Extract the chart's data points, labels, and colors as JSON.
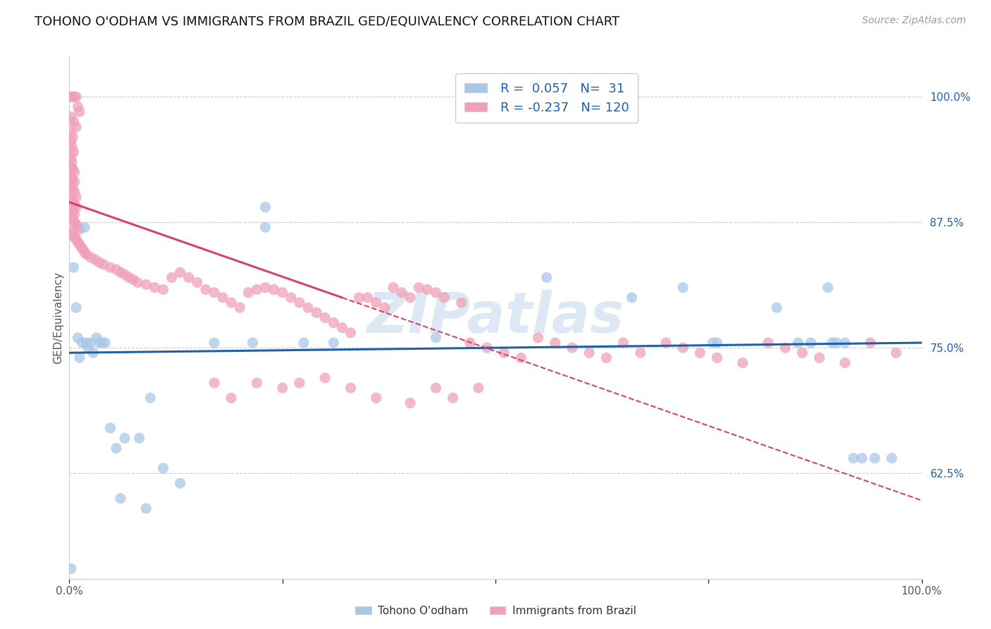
{
  "title": "TOHONO O'ODHAM VS IMMIGRANTS FROM BRAZIL GED/EQUIVALENCY CORRELATION CHART",
  "source": "Source: ZipAtlas.com",
  "ylabel": "GED/Equivalency",
  "legend_blue_r": "0.057",
  "legend_blue_n": "31",
  "legend_pink_r": "-0.237",
  "legend_pink_n": "120",
  "legend_label_blue": "Tohono O'odham",
  "legend_label_pink": "Immigrants from Brazil",
  "watermark": "ZIPatlas",
  "blue_scatter": [
    [
      0.005,
      0.83
    ],
    [
      0.008,
      0.79
    ],
    [
      0.01,
      0.76
    ],
    [
      0.012,
      0.74
    ],
    [
      0.015,
      0.755
    ],
    [
      0.018,
      0.87
    ],
    [
      0.02,
      0.755
    ],
    [
      0.022,
      0.75
    ],
    [
      0.025,
      0.755
    ],
    [
      0.028,
      0.745
    ],
    [
      0.032,
      0.76
    ],
    [
      0.035,
      0.755
    ],
    [
      0.038,
      0.755
    ],
    [
      0.042,
      0.755
    ],
    [
      0.048,
      0.67
    ],
    [
      0.055,
      0.65
    ],
    [
      0.065,
      0.66
    ],
    [
      0.082,
      0.66
    ],
    [
      0.095,
      0.7
    ],
    [
      0.11,
      0.63
    ],
    [
      0.13,
      0.615
    ],
    [
      0.17,
      0.755
    ],
    [
      0.215,
      0.755
    ],
    [
      0.23,
      0.89
    ],
    [
      0.23,
      0.87
    ],
    [
      0.275,
      0.755
    ],
    [
      0.31,
      0.755
    ],
    [
      0.43,
      0.76
    ],
    [
      0.56,
      0.82
    ],
    [
      0.66,
      0.8
    ],
    [
      0.72,
      0.81
    ],
    [
      0.755,
      0.755
    ],
    [
      0.76,
      0.755
    ],
    [
      0.83,
      0.79
    ],
    [
      0.855,
      0.755
    ],
    [
      0.87,
      0.755
    ],
    [
      0.89,
      0.81
    ],
    [
      0.895,
      0.755
    ],
    [
      0.9,
      0.755
    ],
    [
      0.91,
      0.755
    ],
    [
      0.92,
      0.64
    ],
    [
      0.93,
      0.64
    ],
    [
      0.945,
      0.64
    ],
    [
      0.965,
      0.64
    ],
    [
      0.002,
      0.53
    ],
    [
      0.06,
      0.6
    ],
    [
      0.09,
      0.59
    ]
  ],
  "pink_scatter": [
    [
      0.002,
      1.0
    ],
    [
      0.004,
      1.0
    ],
    [
      0.006,
      1.0
    ],
    [
      0.008,
      1.0
    ],
    [
      0.01,
      0.99
    ],
    [
      0.012,
      0.985
    ],
    [
      0.002,
      0.98
    ],
    [
      0.005,
      0.975
    ],
    [
      0.008,
      0.97
    ],
    [
      0.002,
      0.965
    ],
    [
      0.004,
      0.96
    ],
    [
      0.002,
      0.955
    ],
    [
      0.003,
      0.95
    ],
    [
      0.005,
      0.945
    ],
    [
      0.002,
      0.94
    ],
    [
      0.003,
      0.935
    ],
    [
      0.002,
      0.93
    ],
    [
      0.004,
      0.928
    ],
    [
      0.006,
      0.925
    ],
    [
      0.002,
      0.92
    ],
    [
      0.004,
      0.918
    ],
    [
      0.006,
      0.915
    ],
    [
      0.002,
      0.91
    ],
    [
      0.004,
      0.908
    ],
    [
      0.006,
      0.905
    ],
    [
      0.008,
      0.9
    ],
    [
      0.002,
      0.898
    ],
    [
      0.004,
      0.895
    ],
    [
      0.006,
      0.893
    ],
    [
      0.008,
      0.89
    ],
    [
      0.002,
      0.888
    ],
    [
      0.004,
      0.885
    ],
    [
      0.006,
      0.883
    ],
    [
      0.002,
      0.88
    ],
    [
      0.004,
      0.878
    ],
    [
      0.006,
      0.875
    ],
    [
      0.008,
      0.873
    ],
    [
      0.01,
      0.87
    ],
    [
      0.012,
      0.868
    ],
    [
      0.002,
      0.866
    ],
    [
      0.004,
      0.863
    ],
    [
      0.006,
      0.86
    ],
    [
      0.008,
      0.858
    ],
    [
      0.01,
      0.855
    ],
    [
      0.012,
      0.853
    ],
    [
      0.014,
      0.85
    ],
    [
      0.016,
      0.848
    ],
    [
      0.018,
      0.845
    ],
    [
      0.02,
      0.843
    ],
    [
      0.025,
      0.84
    ],
    [
      0.03,
      0.838
    ],
    [
      0.035,
      0.835
    ],
    [
      0.04,
      0.833
    ],
    [
      0.048,
      0.83
    ],
    [
      0.055,
      0.828
    ],
    [
      0.06,
      0.825
    ],
    [
      0.065,
      0.823
    ],
    [
      0.07,
      0.82
    ],
    [
      0.075,
      0.818
    ],
    [
      0.08,
      0.815
    ],
    [
      0.09,
      0.813
    ],
    [
      0.1,
      0.81
    ],
    [
      0.11,
      0.808
    ],
    [
      0.12,
      0.82
    ],
    [
      0.13,
      0.825
    ],
    [
      0.14,
      0.82
    ],
    [
      0.15,
      0.815
    ],
    [
      0.16,
      0.808
    ],
    [
      0.17,
      0.805
    ],
    [
      0.18,
      0.8
    ],
    [
      0.19,
      0.795
    ],
    [
      0.2,
      0.79
    ],
    [
      0.21,
      0.805
    ],
    [
      0.22,
      0.808
    ],
    [
      0.23,
      0.81
    ],
    [
      0.24,
      0.808
    ],
    [
      0.25,
      0.805
    ],
    [
      0.26,
      0.8
    ],
    [
      0.27,
      0.795
    ],
    [
      0.28,
      0.79
    ],
    [
      0.29,
      0.785
    ],
    [
      0.3,
      0.78
    ],
    [
      0.31,
      0.775
    ],
    [
      0.32,
      0.77
    ],
    [
      0.33,
      0.765
    ],
    [
      0.34,
      0.8
    ],
    [
      0.35,
      0.8
    ],
    [
      0.36,
      0.795
    ],
    [
      0.37,
      0.79
    ],
    [
      0.38,
      0.81
    ],
    [
      0.39,
      0.805
    ],
    [
      0.4,
      0.8
    ],
    [
      0.41,
      0.81
    ],
    [
      0.42,
      0.808
    ],
    [
      0.43,
      0.805
    ],
    [
      0.44,
      0.8
    ],
    [
      0.46,
      0.795
    ],
    [
      0.47,
      0.755
    ],
    [
      0.49,
      0.75
    ],
    [
      0.51,
      0.745
    ],
    [
      0.53,
      0.74
    ],
    [
      0.55,
      0.76
    ],
    [
      0.57,
      0.755
    ],
    [
      0.59,
      0.75
    ],
    [
      0.61,
      0.745
    ],
    [
      0.63,
      0.74
    ],
    [
      0.65,
      0.755
    ],
    [
      0.67,
      0.745
    ],
    [
      0.7,
      0.755
    ],
    [
      0.72,
      0.75
    ],
    [
      0.74,
      0.745
    ],
    [
      0.76,
      0.74
    ],
    [
      0.79,
      0.735
    ],
    [
      0.82,
      0.755
    ],
    [
      0.84,
      0.75
    ],
    [
      0.86,
      0.745
    ],
    [
      0.88,
      0.74
    ],
    [
      0.91,
      0.735
    ],
    [
      0.94,
      0.755
    ],
    [
      0.97,
      0.745
    ],
    [
      0.3,
      0.72
    ],
    [
      0.33,
      0.71
    ],
    [
      0.36,
      0.7
    ],
    [
      0.4,
      0.695
    ],
    [
      0.43,
      0.71
    ],
    [
      0.45,
      0.7
    ],
    [
      0.22,
      0.715
    ],
    [
      0.25,
      0.71
    ],
    [
      0.27,
      0.715
    ],
    [
      0.17,
      0.715
    ],
    [
      0.19,
      0.7
    ],
    [
      0.48,
      0.71
    ]
  ],
  "blue_line": [
    [
      0.0,
      0.745
    ],
    [
      1.0,
      0.755
    ]
  ],
  "pink_line_solid": [
    [
      0.0,
      0.895
    ],
    [
      0.32,
      0.8
    ]
  ],
  "pink_line_dash": [
    [
      0.32,
      0.8
    ],
    [
      1.0,
      0.598
    ]
  ],
  "xlim": [
    0.0,
    1.0
  ],
  "ylim": [
    0.52,
    1.04
  ],
  "yticks": [
    0.625,
    0.75,
    0.875,
    1.0
  ],
  "ytick_str": [
    "62.5%",
    "75.0%",
    "87.5%",
    "100.0%"
  ],
  "xticks": [
    0.0,
    0.25,
    0.5,
    0.75,
    1.0
  ],
  "xtick_str": [
    "0.0%",
    "",
    "",
    "",
    "100.0%"
  ],
  "blue_color": "#a8c8e8",
  "pink_color": "#f0a0b8",
  "blue_line_color": "#2060a8",
  "pink_line_color": "#d84070",
  "grid_color": "#cccccc",
  "bg_color": "#ffffff",
  "watermark_color": "#dce8f4",
  "title_fontsize": 13,
  "source_fontsize": 10,
  "label_fontsize": 11,
  "tick_fontsize": 11,
  "legend_fontsize": 13
}
